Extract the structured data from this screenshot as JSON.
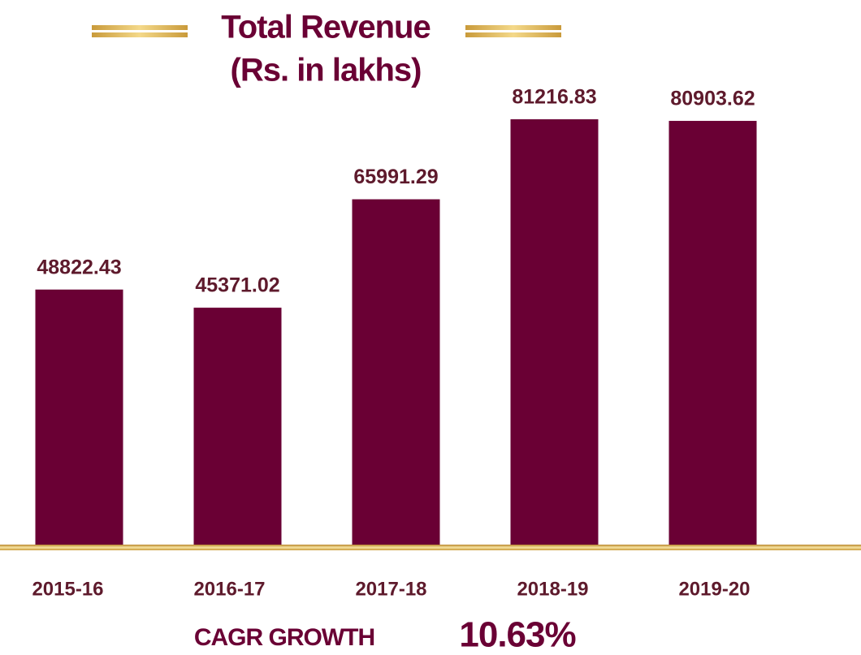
{
  "chart_data": {
    "type": "bar",
    "title": "Total Revenue",
    "subtitle": "(Rs. in lakhs)",
    "categories": [
      "2015-16",
      "2016-17",
      "2017-18",
      "2018-19",
      "2019-20"
    ],
    "values": [
      48822.43,
      45371.02,
      65991.29,
      81216.83,
      80903.62
    ],
    "color": "#6a0034",
    "ylim": [
      0,
      90000
    ],
    "cagr": {
      "label": "CAGR GROWTH",
      "value": "10.63%"
    }
  }
}
